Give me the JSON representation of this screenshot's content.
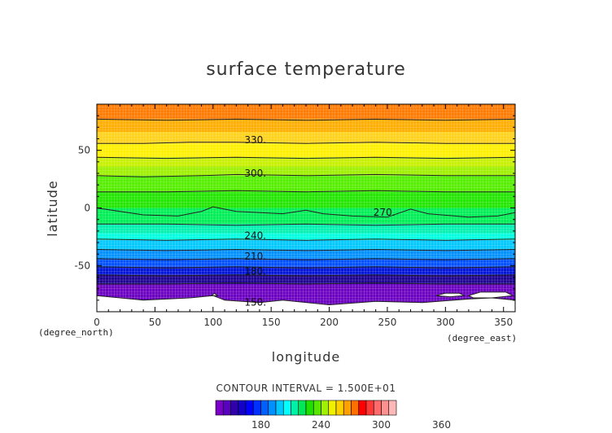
{
  "chart_data": {
    "type": "heatmap",
    "title": "surface temperature",
    "xlabel": "longitude",
    "ylabel": "latitude",
    "x_unit_label": "(degree_east)",
    "y_unit_label": "(degree_north)",
    "xlim": [
      0,
      360
    ],
    "ylim": [
      -90,
      90
    ],
    "x_ticks": [
      0,
      50,
      100,
      150,
      200,
      250,
      300,
      350
    ],
    "y_ticks": [
      -50,
      0,
      50
    ],
    "contour_interval_text": "CONTOUR INTERVAL = 1.500E+01",
    "contour_interval": 15,
    "contour_labels": [
      {
        "text": "330.",
        "lon": 127,
        "lat": 57
      },
      {
        "text": "300.",
        "lon": 127,
        "lat": 28
      },
      {
        "text": "270.",
        "lon": 238,
        "lat": -6
      },
      {
        "text": "240.",
        "lon": 127,
        "lat": -26
      },
      {
        "text": "210.",
        "lon": 127,
        "lat": -44
      },
      {
        "text": "180.",
        "lon": 127,
        "lat": -57
      },
      {
        "text": "150.",
        "lon": 127,
        "lat": -84
      }
    ],
    "contours": [
      {
        "level": 345,
        "points": [
          [
            0,
            77
          ],
          [
            60,
            76
          ],
          [
            120,
            77
          ],
          [
            180,
            76
          ],
          [
            240,
            77
          ],
          [
            300,
            76
          ],
          [
            360,
            77
          ]
        ]
      },
      {
        "level": 330,
        "points": [
          [
            0,
            56
          ],
          [
            40,
            56
          ],
          [
            80,
            57
          ],
          [
            120,
            57
          ],
          [
            180,
            56
          ],
          [
            240,
            57
          ],
          [
            300,
            56
          ],
          [
            360,
            56
          ]
        ]
      },
      {
        "level": 315,
        "points": [
          [
            0,
            44
          ],
          [
            60,
            43
          ],
          [
            120,
            44
          ],
          [
            180,
            43
          ],
          [
            240,
            44
          ],
          [
            300,
            43
          ],
          [
            360,
            44
          ]
        ]
      },
      {
        "level": 300,
        "points": [
          [
            0,
            28
          ],
          [
            40,
            27
          ],
          [
            90,
            28
          ],
          [
            120,
            29
          ],
          [
            180,
            28
          ],
          [
            240,
            29
          ],
          [
            300,
            28
          ],
          [
            360,
            28
          ]
        ]
      },
      {
        "level": 285,
        "points": [
          [
            0,
            14
          ],
          [
            60,
            14
          ],
          [
            120,
            15
          ],
          [
            180,
            14
          ],
          [
            240,
            15
          ],
          [
            300,
            14
          ],
          [
            360,
            14
          ]
        ]
      },
      {
        "level": 270,
        "points": [
          [
            0,
            0
          ],
          [
            40,
            -6
          ],
          [
            70,
            -7
          ],
          [
            90,
            -3
          ],
          [
            100,
            1
          ],
          [
            120,
            -3
          ],
          [
            160,
            -5
          ],
          [
            180,
            -2
          ],
          [
            195,
            -5
          ],
          [
            220,
            -7
          ],
          [
            250,
            -8
          ],
          [
            270,
            -1
          ],
          [
            285,
            -5
          ],
          [
            320,
            -8
          ],
          [
            345,
            -7
          ],
          [
            360,
            -4
          ]
        ]
      },
      {
        "level": 255,
        "points": [
          [
            0,
            -14
          ],
          [
            60,
            -14
          ],
          [
            120,
            -15
          ],
          [
            180,
            -14
          ],
          [
            240,
            -15
          ],
          [
            300,
            -14
          ],
          [
            360,
            -14
          ]
        ]
      },
      {
        "level": 240,
        "points": [
          [
            0,
            -27
          ],
          [
            60,
            -28
          ],
          [
            120,
            -27
          ],
          [
            180,
            -28
          ],
          [
            240,
            -27
          ],
          [
            300,
            -28
          ],
          [
            360,
            -27
          ]
        ]
      },
      {
        "level": 225,
        "points": [
          [
            0,
            -36
          ],
          [
            60,
            -37
          ],
          [
            120,
            -36
          ],
          [
            180,
            -37
          ],
          [
            240,
            -36
          ],
          [
            300,
            -37
          ],
          [
            360,
            -36
          ]
        ]
      },
      {
        "level": 210,
        "points": [
          [
            0,
            -44
          ],
          [
            60,
            -45
          ],
          [
            120,
            -44
          ],
          [
            180,
            -45
          ],
          [
            240,
            -44
          ],
          [
            300,
            -45
          ],
          [
            360,
            -44
          ]
        ]
      },
      {
        "level": 195,
        "points": [
          [
            0,
            -51
          ],
          [
            60,
            -52
          ],
          [
            120,
            -51
          ],
          [
            180,
            -52
          ],
          [
            240,
            -51
          ],
          [
            300,
            -52
          ],
          [
            360,
            -51
          ]
        ]
      },
      {
        "level": 180,
        "points": [
          [
            0,
            -58
          ],
          [
            60,
            -59
          ],
          [
            120,
            -58
          ],
          [
            180,
            -59
          ],
          [
            240,
            -58
          ],
          [
            300,
            -59
          ],
          [
            360,
            -58
          ]
        ]
      },
      {
        "level": 165,
        "points": [
          [
            0,
            -66
          ],
          [
            60,
            -66
          ],
          [
            120,
            -65
          ],
          [
            180,
            -66
          ],
          [
            240,
            -65
          ],
          [
            300,
            -66
          ],
          [
            360,
            -66
          ]
        ]
      }
    ],
    "bands": [
      {
        "from": 77,
        "to": 90,
        "color": "#ff7a00"
      },
      {
        "from": 66,
        "to": 77,
        "color": "#ffae00"
      },
      {
        "from": 56,
        "to": 66,
        "color": "#ffd21a"
      },
      {
        "from": 44,
        "to": 56,
        "color": "#fff000"
      },
      {
        "from": 36,
        "to": 44,
        "color": "#c8f000"
      },
      {
        "from": 28,
        "to": 36,
        "color": "#9ff000"
      },
      {
        "from": 14,
        "to": 28,
        "color": "#55ee00"
      },
      {
        "from": 0,
        "to": 14,
        "color": "#22e600"
      },
      {
        "from": -14,
        "to": 0,
        "color": "#00ee55"
      },
      {
        "from": -22,
        "to": -14,
        "color": "#00f0b0"
      },
      {
        "from": -28,
        "to": -22,
        "color": "#00ffe0"
      },
      {
        "from": -36,
        "to": -28,
        "color": "#00c8ff"
      },
      {
        "from": -44,
        "to": -36,
        "color": "#0090ff"
      },
      {
        "from": -51,
        "to": -44,
        "color": "#0050ff"
      },
      {
        "from": -58,
        "to": -51,
        "color": "#0014d8"
      },
      {
        "from": -66,
        "to": -58,
        "color": "#1c0090"
      },
      {
        "from": -90,
        "to": -66,
        "color": "#6a00c0"
      }
    ],
    "missing_regions": [
      [
        [
          0,
          -76
        ],
        [
          40,
          -80
        ],
        [
          80,
          -78
        ],
        [
          100,
          -76
        ],
        [
          110,
          -80
        ],
        [
          140,
          -82
        ],
        [
          160,
          -80
        ],
        [
          200,
          -84
        ],
        [
          240,
          -81
        ],
        [
          280,
          -82
        ],
        [
          320,
          -79
        ],
        [
          340,
          -78
        ],
        [
          360,
          -80
        ],
        [
          360,
          -90
        ],
        [
          0,
          -90
        ]
      ],
      [
        [
          292,
          -76
        ],
        [
          300,
          -74
        ],
        [
          312,
          -74
        ],
        [
          316,
          -76
        ],
        [
          304,
          -77
        ]
      ],
      [
        [
          320,
          -76
        ],
        [
          330,
          -73
        ],
        [
          352,
          -73
        ],
        [
          358,
          -76
        ],
        [
          340,
          -78
        ],
        [
          324,
          -78
        ]
      ],
      [
        [
          99,
          -76
        ],
        [
          101,
          -74
        ],
        [
          104,
          -76
        ]
      ]
    ],
    "colorbar": {
      "colors": [
        "#7a00c8",
        "#5a00c0",
        "#3000a8",
        "#1400c8",
        "#0000ff",
        "#0030ff",
        "#0060ff",
        "#0090ff",
        "#00c8ff",
        "#00ffff",
        "#00f0a8",
        "#00e858",
        "#20e000",
        "#58e600",
        "#a0f000",
        "#f0f000",
        "#ffd000",
        "#ffa000",
        "#ff7000",
        "#ff0000",
        "#ff3838",
        "#ff6a6a",
        "#ff9090",
        "#ffb8b8"
      ],
      "min": 135,
      "step": 7.5,
      "tick_values": [
        180,
        240,
        300,
        360
      ]
    }
  }
}
